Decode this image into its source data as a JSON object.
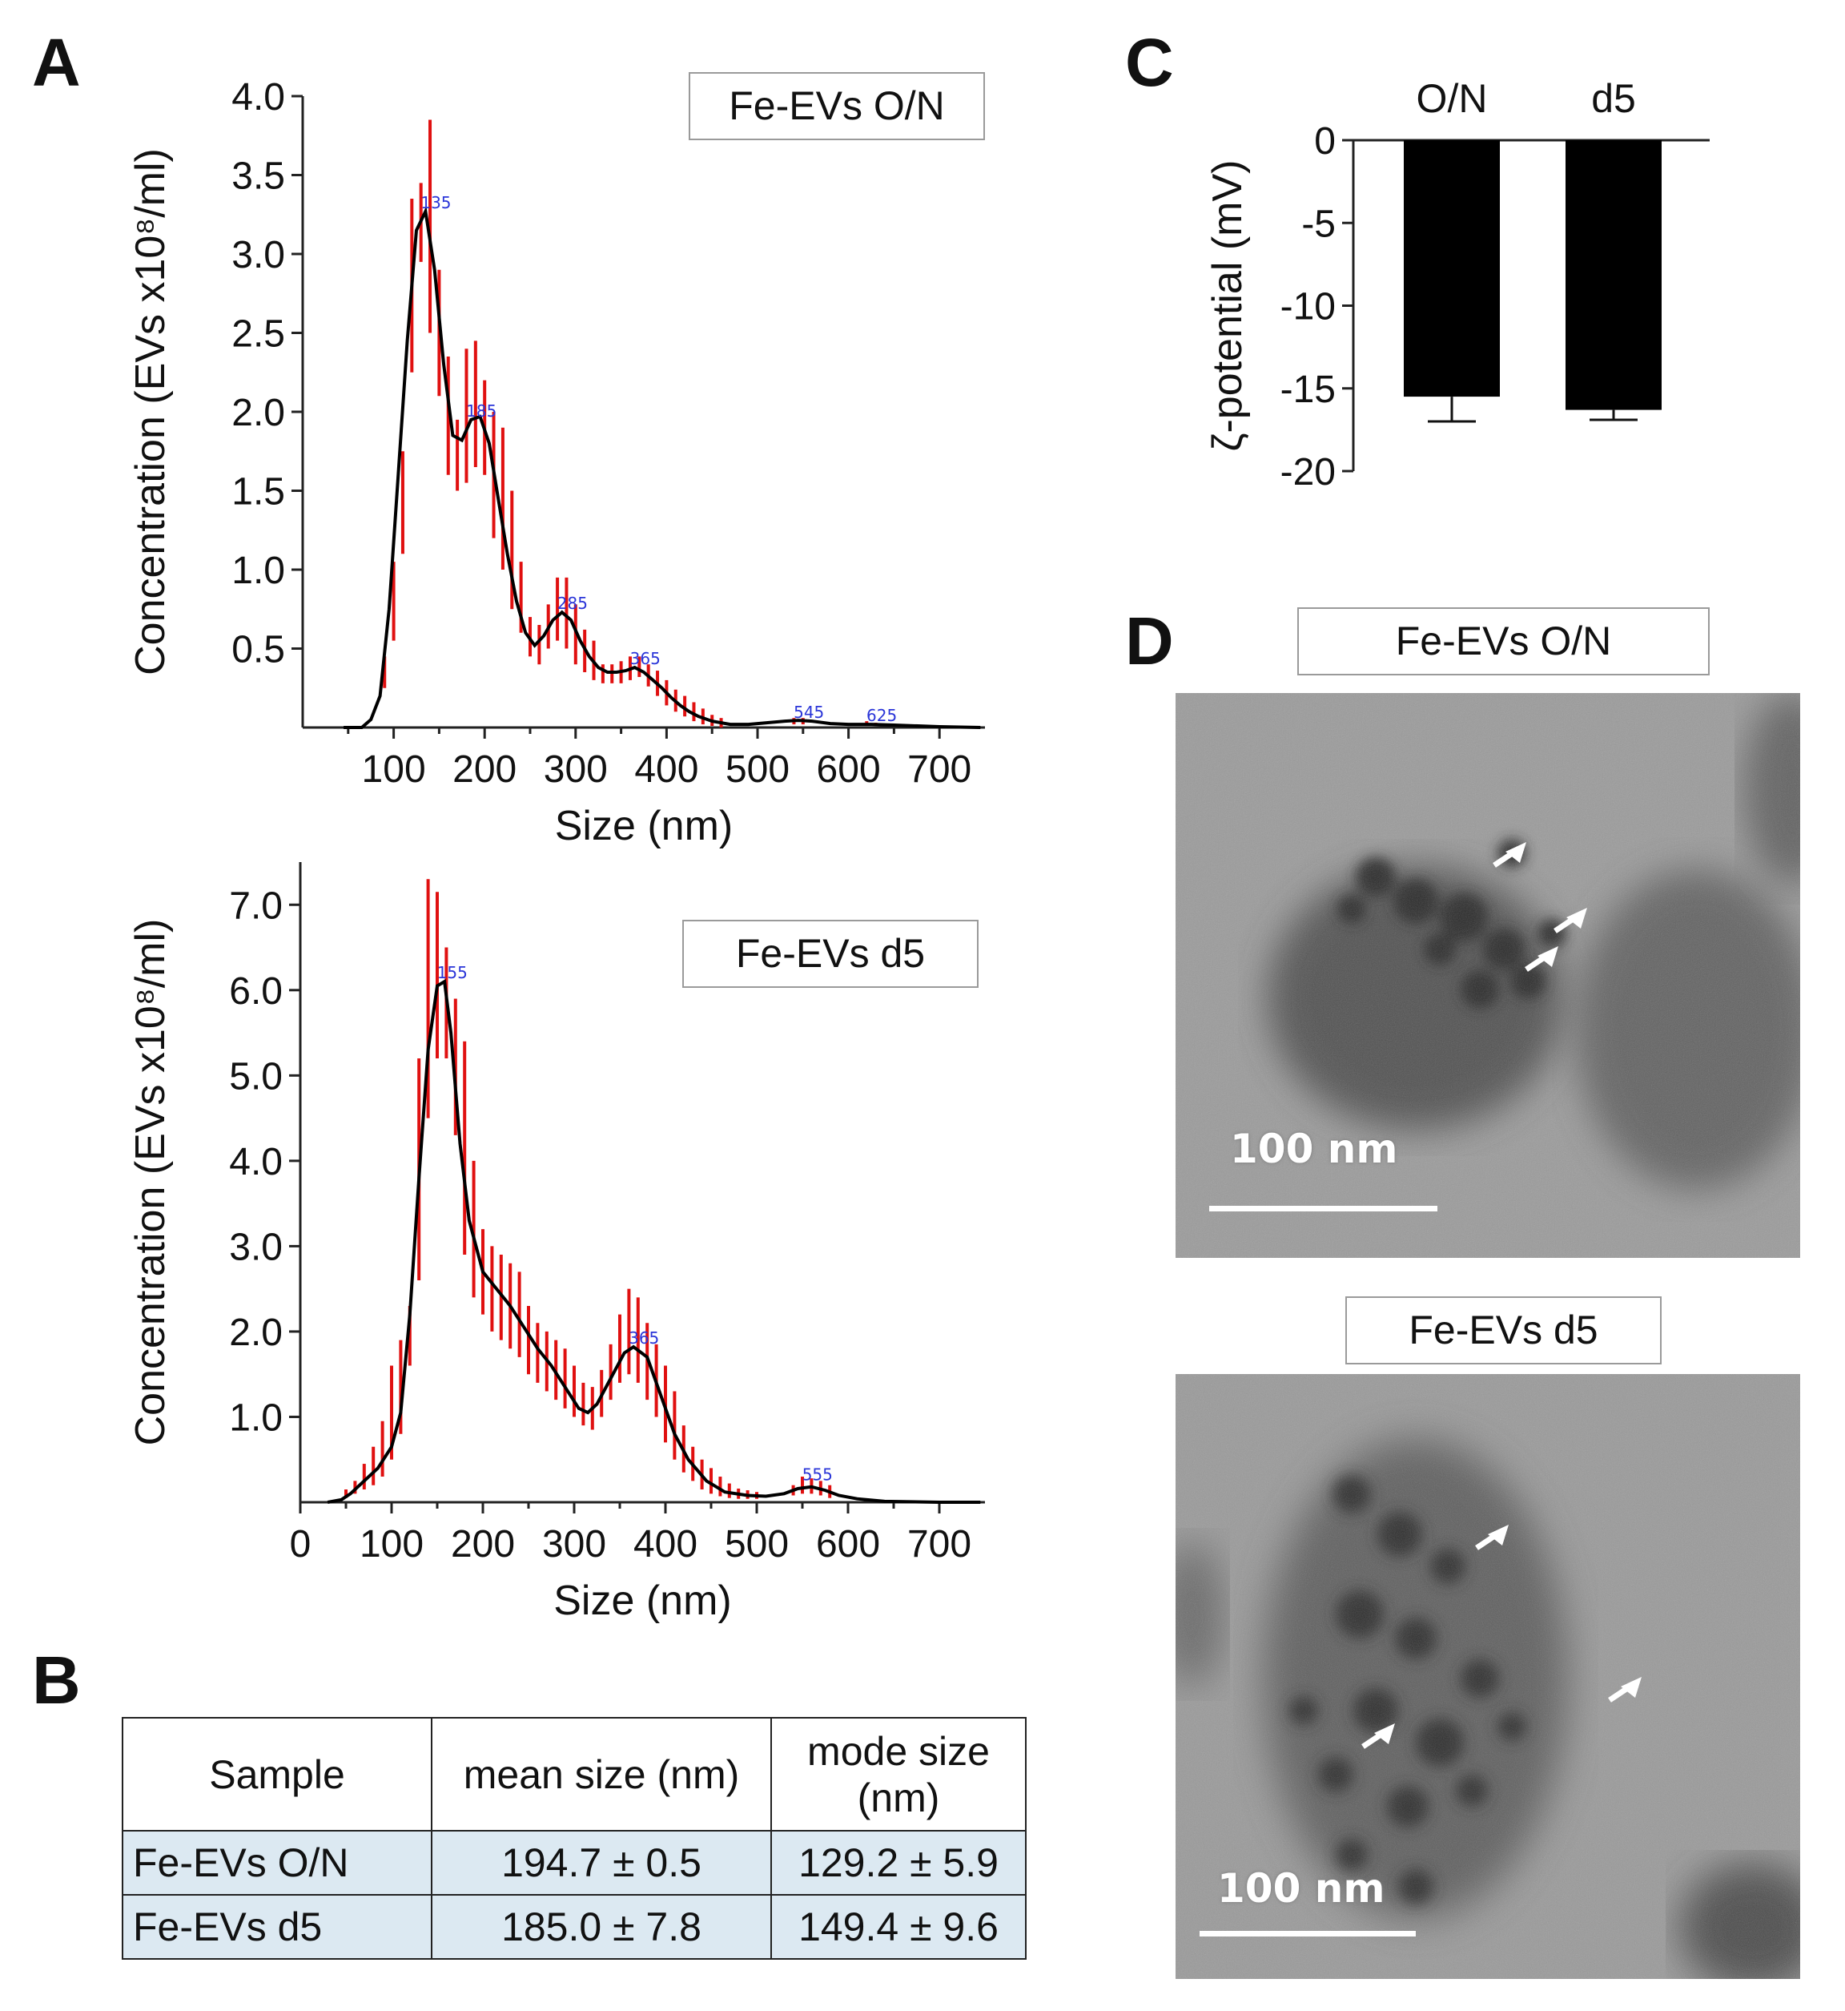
{
  "panels": {
    "a": "A",
    "b": "B",
    "c": "C",
    "d": "D"
  },
  "chart_data": [
    {
      "type": "line",
      "legend": "Fe-EVs O/N",
      "ylabel": "Concentration (EVs x10⁸/ml)",
      "xlabel": "Size (nm)",
      "xlim": [
        0,
        750
      ],
      "ylim": [
        0,
        4.0
      ],
      "x_ticks": [
        "100",
        "200",
        "300",
        "400",
        "500",
        "600",
        "700"
      ],
      "y_ticks": [
        "0.5",
        "1.0",
        "1.5",
        "2.0",
        "2.5",
        "3.0",
        "3.5",
        "4.0"
      ],
      "peak_labels": [
        "135",
        "185",
        "285",
        "365",
        "545",
        "625"
      ],
      "peak_positions": [
        [
          135,
          3.27
        ],
        [
          185,
          1.95
        ],
        [
          285,
          0.73
        ],
        [
          365,
          0.38
        ],
        [
          545,
          0.04
        ],
        [
          625,
          0.02
        ]
      ],
      "fit_curve": [
        [
          45,
          0
        ],
        [
          65,
          0.0
        ],
        [
          75,
          0.05
        ],
        [
          85,
          0.2
        ],
        [
          95,
          0.75
        ],
        [
          105,
          1.6
        ],
        [
          115,
          2.45
        ],
        [
          125,
          3.15
        ],
        [
          135,
          3.27
        ],
        [
          145,
          2.9
        ],
        [
          155,
          2.3
        ],
        [
          165,
          1.85
        ],
        [
          175,
          1.82
        ],
        [
          185,
          1.95
        ],
        [
          195,
          1.97
        ],
        [
          205,
          1.8
        ],
        [
          215,
          1.45
        ],
        [
          225,
          1.1
        ],
        [
          235,
          0.8
        ],
        [
          245,
          0.6
        ],
        [
          255,
          0.52
        ],
        [
          265,
          0.58
        ],
        [
          275,
          0.68
        ],
        [
          285,
          0.73
        ],
        [
          295,
          0.68
        ],
        [
          305,
          0.55
        ],
        [
          315,
          0.45
        ],
        [
          325,
          0.38
        ],
        [
          335,
          0.35
        ],
        [
          345,
          0.35
        ],
        [
          355,
          0.36
        ],
        [
          365,
          0.38
        ],
        [
          375,
          0.35
        ],
        [
          385,
          0.3
        ],
        [
          395,
          0.25
        ],
        [
          405,
          0.19
        ],
        [
          415,
          0.14
        ],
        [
          425,
          0.1
        ],
        [
          435,
          0.07
        ],
        [
          450,
          0.04
        ],
        [
          470,
          0.02
        ],
        [
          490,
          0.02
        ],
        [
          510,
          0.03
        ],
        [
          530,
          0.04
        ],
        [
          545,
          0.045
        ],
        [
          560,
          0.04
        ],
        [
          580,
          0.025
        ],
        [
          600,
          0.02
        ],
        [
          625,
          0.02
        ],
        [
          650,
          0.015
        ],
        [
          700,
          0.005
        ],
        [
          745,
          0
        ]
      ],
      "error_bars": [
        [
          90,
          0.25,
          0.45
        ],
        [
          100,
          0.55,
          1.05
        ],
        [
          110,
          1.1,
          1.75
        ],
        [
          120,
          2.25,
          3.35
        ],
        [
          130,
          2.95,
          3.45
        ],
        [
          140,
          2.5,
          3.85
        ],
        [
          150,
          2.1,
          2.9
        ],
        [
          160,
          1.6,
          2.35
        ],
        [
          170,
          1.5,
          1.95
        ],
        [
          180,
          1.55,
          2.4
        ],
        [
          190,
          1.65,
          2.45
        ],
        [
          200,
          1.6,
          2.2
        ],
        [
          210,
          1.2,
          2.0
        ],
        [
          220,
          1.0,
          1.9
        ],
        [
          230,
          0.75,
          1.5
        ],
        [
          240,
          0.6,
          1.05
        ],
        [
          250,
          0.45,
          0.7
        ],
        [
          260,
          0.4,
          0.65
        ],
        [
          270,
          0.5,
          0.78
        ],
        [
          280,
          0.55,
          0.95
        ],
        [
          290,
          0.5,
          0.95
        ],
        [
          300,
          0.4,
          0.78
        ],
        [
          310,
          0.35,
          0.62
        ],
        [
          320,
          0.3,
          0.55
        ],
        [
          330,
          0.28,
          0.4
        ],
        [
          340,
          0.28,
          0.4
        ],
        [
          350,
          0.28,
          0.42
        ],
        [
          360,
          0.3,
          0.45
        ],
        [
          370,
          0.32,
          0.45
        ],
        [
          380,
          0.26,
          0.4
        ],
        [
          390,
          0.2,
          0.36
        ],
        [
          400,
          0.14,
          0.3
        ],
        [
          410,
          0.1,
          0.24
        ],
        [
          420,
          0.07,
          0.2
        ],
        [
          430,
          0.04,
          0.16
        ],
        [
          440,
          0.02,
          0.12
        ],
        [
          450,
          0.01,
          0.08
        ],
        [
          460,
          0.0,
          0.06
        ],
        [
          540,
          0.02,
          0.06
        ],
        [
          550,
          0.02,
          0.06
        ],
        [
          620,
          0.01,
          0.04
        ],
        [
          630,
          0.01,
          0.03
        ]
      ]
    },
    {
      "type": "line",
      "legend": "Fe-EVs d5",
      "ylabel": "Concentration (EVs x10⁸/ml)",
      "xlabel": "Size (nm)",
      "xlim": [
        0,
        750
      ],
      "ylim": [
        0,
        7.5
      ],
      "x_ticks": [
        "0",
        "100",
        "200",
        "300",
        "400",
        "500",
        "600",
        "700"
      ],
      "y_ticks": [
        "1.0",
        "2.0",
        "3.0",
        "4.0",
        "5.0",
        "6.0",
        "7.0"
      ],
      "peak_labels": [
        "155",
        "365",
        "555"
      ],
      "peak_positions": [
        [
          155,
          6.1
        ],
        [
          365,
          1.82
        ],
        [
          555,
          0.22
        ]
      ],
      "fit_curve": [
        [
          30,
          0
        ],
        [
          45,
          0.03
        ],
        [
          55,
          0.1
        ],
        [
          70,
          0.25
        ],
        [
          85,
          0.4
        ],
        [
          100,
          0.65
        ],
        [
          110,
          1.05
        ],
        [
          120,
          2.2
        ],
        [
          130,
          3.8
        ],
        [
          140,
          5.3
        ],
        [
          150,
          6.05
        ],
        [
          158,
          6.1
        ],
        [
          165,
          5.5
        ],
        [
          175,
          4.2
        ],
        [
          185,
          3.3
        ],
        [
          200,
          2.7
        ],
        [
          215,
          2.5
        ],
        [
          230,
          2.3
        ],
        [
          245,
          2.05
        ],
        [
          260,
          1.8
        ],
        [
          275,
          1.6
        ],
        [
          290,
          1.35
        ],
        [
          305,
          1.1
        ],
        [
          315,
          1.05
        ],
        [
          325,
          1.15
        ],
        [
          340,
          1.45
        ],
        [
          355,
          1.75
        ],
        [
          365,
          1.82
        ],
        [
          380,
          1.7
        ],
        [
          395,
          1.25
        ],
        [
          410,
          0.8
        ],
        [
          425,
          0.5
        ],
        [
          445,
          0.25
        ],
        [
          465,
          0.12
        ],
        [
          490,
          0.08
        ],
        [
          510,
          0.07
        ],
        [
          530,
          0.1
        ],
        [
          545,
          0.16
        ],
        [
          560,
          0.18
        ],
        [
          575,
          0.14
        ],
        [
          590,
          0.08
        ],
        [
          610,
          0.04
        ],
        [
          640,
          0.01
        ],
        [
          700,
          0
        ],
        [
          745,
          0
        ]
      ],
      "error_bars": [
        [
          50,
          0.05,
          0.15
        ],
        [
          60,
          0.1,
          0.25
        ],
        [
          70,
          0.15,
          0.45
        ],
        [
          80,
          0.2,
          0.65
        ],
        [
          90,
          0.3,
          0.95
        ],
        [
          100,
          0.5,
          1.6
        ],
        [
          110,
          0.8,
          1.9
        ],
        [
          120,
          1.6,
          2.3
        ],
        [
          130,
          2.6,
          5.2
        ],
        [
          140,
          4.5,
          7.3
        ],
        [
          150,
          5.2,
          7.15
        ],
        [
          160,
          5.2,
          6.5
        ],
        [
          170,
          4.3,
          5.9
        ],
        [
          180,
          2.9,
          5.4
        ],
        [
          190,
          2.4,
          4.0
        ],
        [
          200,
          2.2,
          3.2
        ],
        [
          210,
          2.0,
          3.0
        ],
        [
          220,
          1.9,
          2.9
        ],
        [
          230,
          1.8,
          2.8
        ],
        [
          240,
          1.7,
          2.7
        ],
        [
          250,
          1.5,
          2.3
        ],
        [
          260,
          1.4,
          2.1
        ],
        [
          270,
          1.3,
          2.0
        ],
        [
          280,
          1.2,
          1.9
        ],
        [
          290,
          1.1,
          1.8
        ],
        [
          300,
          1.0,
          1.6
        ],
        [
          310,
          0.9,
          1.4
        ],
        [
          320,
          0.85,
          1.35
        ],
        [
          330,
          1.0,
          1.55
        ],
        [
          340,
          1.2,
          1.85
        ],
        [
          350,
          1.4,
          2.2
        ],
        [
          360,
          1.5,
          2.5
        ],
        [
          370,
          1.4,
          2.4
        ],
        [
          380,
          1.2,
          2.1
        ],
        [
          390,
          1.0,
          1.85
        ],
        [
          400,
          0.7,
          1.6
        ],
        [
          410,
          0.5,
          1.3
        ],
        [
          420,
          0.35,
          0.9
        ],
        [
          430,
          0.25,
          0.65
        ],
        [
          440,
          0.15,
          0.5
        ],
        [
          450,
          0.1,
          0.4
        ],
        [
          460,
          0.07,
          0.3
        ],
        [
          470,
          0.05,
          0.22
        ],
        [
          480,
          0.04,
          0.16
        ],
        [
          490,
          0.04,
          0.14
        ],
        [
          500,
          0.04,
          0.12
        ],
        [
          540,
          0.08,
          0.2
        ],
        [
          550,
          0.1,
          0.3
        ],
        [
          560,
          0.1,
          0.28
        ],
        [
          570,
          0.08,
          0.25
        ],
        [
          580,
          0.05,
          0.2
        ]
      ]
    },
    {
      "type": "bar",
      "ylabel": "ζ-potential (mV)",
      "categories": [
        "O/N",
        "d5"
      ],
      "values": [
        -15.5,
        -16.3
      ],
      "errors": [
        1.5,
        0.6
      ],
      "ylim": [
        -20,
        0
      ],
      "y_ticks": [
        "0",
        "-5",
        "-10",
        "-15",
        "-20"
      ]
    }
  ],
  "summary_table": {
    "headers": [
      "Sample",
      "mean size (nm)",
      "mode size (nm)"
    ],
    "rows": [
      [
        "Fe-EVs O/N",
        "194.7 ± 0.5",
        "129.2 ±  5.9"
      ],
      [
        "Fe-EVs d5",
        "185.0 ±  7.8",
        "149.4 ±  9.6"
      ]
    ]
  },
  "tem": {
    "top_label": "Fe-EVs O/N",
    "bottom_label": "Fe-EVs d5",
    "scale_label": "100 nm"
  }
}
